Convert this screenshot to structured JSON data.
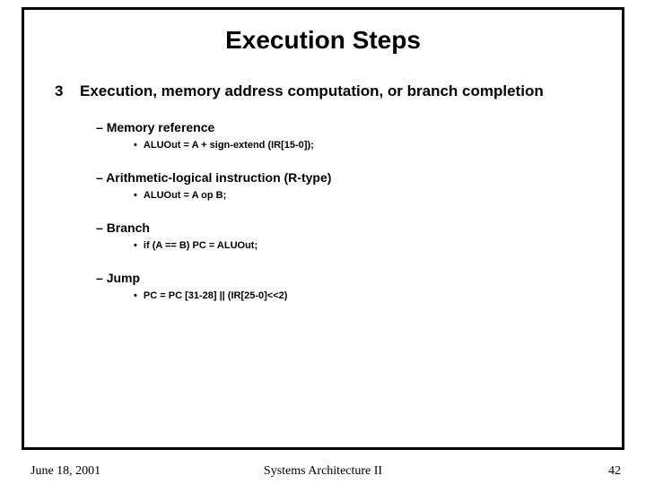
{
  "title": "Execution Steps",
  "step": {
    "number": "3",
    "heading": "Execution, memory address computation, or branch completion",
    "items": [
      {
        "name": "Memory reference",
        "code": "ALUOut = A + sign-extend (IR[15-0]);"
      },
      {
        "name": "Arithmetic-logical instruction (R-type)",
        "code": "ALUOut = A op B;"
      },
      {
        "name": "Branch",
        "code": "if (A == B) PC = ALUOut;"
      },
      {
        "name": "Jump",
        "code": "PC = PC [31-28] || (IR[25-0]<<2)"
      }
    ]
  },
  "footer": {
    "date": "June 18, 2001",
    "center": "Systems Architecture II",
    "page": "42"
  },
  "styling": {
    "slide_width": 720,
    "slide_height": 540,
    "border_color": "#000000",
    "background_color": "#ffffff",
    "text_color": "#000000",
    "title_fontsize": 28,
    "level1_fontsize": 17,
    "level2_fontsize": 14,
    "level3_fontsize": 11,
    "footer_fontsize": 14,
    "title_font": "Arial",
    "footer_font": "Times New Roman"
  }
}
